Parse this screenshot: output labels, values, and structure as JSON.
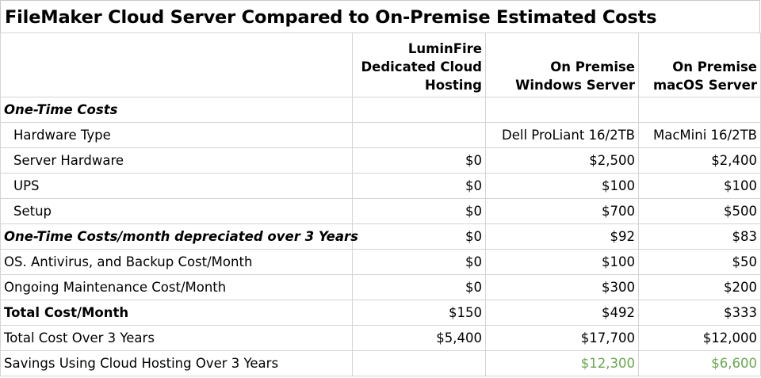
{
  "title": "FileMaker Cloud Server Compared to On-Premise Estimated Costs",
  "columns": {
    "cloud": [
      "LuminFire",
      "Dedicated Cloud",
      "Hosting"
    ],
    "windows": [
      "On Premise",
      "Windows Server"
    ],
    "mac": [
      "On Premise",
      "macOS Server"
    ]
  },
  "rows": [
    {
      "label": "One-Time Costs",
      "cloud": "",
      "windows": "",
      "mac": ""
    },
    {
      "label": "Hardware Type",
      "cloud": "",
      "windows": "Dell ProLiant 16/2TB",
      "mac": "MacMini 16/2TB"
    },
    {
      "label": "Server Hardware",
      "cloud": "$0",
      "windows": "$2,500",
      "mac": "$2,400"
    },
    {
      "label": "UPS",
      "cloud": "$0",
      "windows": "$100",
      "mac": "$100"
    },
    {
      "label": "Setup",
      "cloud": "$0",
      "windows": "$700",
      "mac": "$500"
    },
    {
      "label": "One-Time Costs/month depreciated over 3 Years",
      "cloud": "$0",
      "windows": "$92",
      "mac": "$83"
    },
    {
      "label": "OS. Antivirus, and Backup Cost/Month",
      "cloud": "$0",
      "windows": "$100",
      "mac": "$50"
    },
    {
      "label": "Ongoing Maintenance Cost/Month",
      "cloud": "$0",
      "windows": "$300",
      "mac": "$200"
    },
    {
      "label": "Total Cost/Month",
      "cloud": "$150",
      "windows": "$492",
      "mac": "$333"
    },
    {
      "label": "Total Cost Over 3 Years",
      "cloud": "$5,400",
      "windows": "$17,700",
      "mac": "$12,000"
    },
    {
      "label": "Savings Using Cloud Hosting Over 3 Years",
      "cloud": "",
      "windows": "$12,300",
      "mac": "$6,600"
    }
  ],
  "colors": {
    "savings": "#6aa84f",
    "gridline": "#d4d4d4"
  }
}
